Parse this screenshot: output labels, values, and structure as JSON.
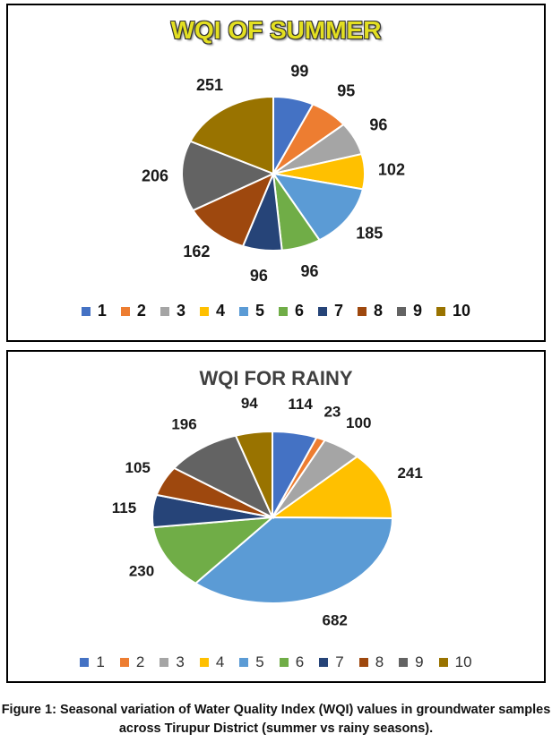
{
  "chart_data": [
    {
      "type": "pie",
      "title": "WQI OF SUMMER",
      "categories": [
        "1",
        "2",
        "3",
        "4",
        "5",
        "6",
        "7",
        "8",
        "9",
        "10"
      ],
      "values": [
        99,
        95,
        96,
        102,
        185,
        96,
        96,
        162,
        206,
        251
      ],
      "legend": "bottom"
    },
    {
      "type": "pie",
      "title": "WQI FOR RAINY",
      "categories": [
        "1",
        "2",
        "3",
        "4",
        "5",
        "6",
        "7",
        "8",
        "9",
        "10"
      ],
      "values": [
        114,
        23,
        100,
        241,
        682,
        230,
        115,
        105,
        196,
        94
      ],
      "legend": "bottom"
    }
  ],
  "colors": [
    "#4472c4",
    "#ed7d31",
    "#a5a5a5",
    "#ffc000",
    "#5b9bd5",
    "#70ad47",
    "#264478",
    "#9e480e",
    "#636363",
    "#997300"
  ],
  "caption": "Figure 1: Seasonal variation of Water Quality Index (WQI) values in groundwater samples across Tirupur District (summer vs rainy seasons)."
}
